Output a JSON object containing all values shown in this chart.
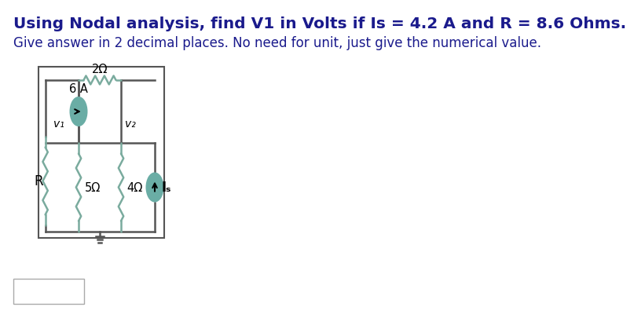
{
  "title_line1": "Using Nodal analysis, find V1 in Volts if Is = 4.2 A and R = 8.6 Ohms.",
  "title_line2": "Give answer in 2 decimal places. No need for unit, just give the numerical value.",
  "bg_color": "#ffffff",
  "circuit_box_color": "#555555",
  "resistor_color": "#7aab9e",
  "current_source_fill": "#6aada5",
  "current_source_edge": "#4a8a82",
  "wire_color": "#555555",
  "label_R": "R",
  "label_2ohm": "2Ω",
  "label_5ohm": "5Ω",
  "label_4ohm": "4Ω",
  "label_6A": "6 A",
  "label_Is": "Iₛ",
  "label_v1": "v₁",
  "label_v2": "v₂",
  "answer_box_color": "#ffffff",
  "answer_box_border": "#aaaaaa",
  "title_fontsize": 14.5,
  "sub_fontsize": 12.0
}
